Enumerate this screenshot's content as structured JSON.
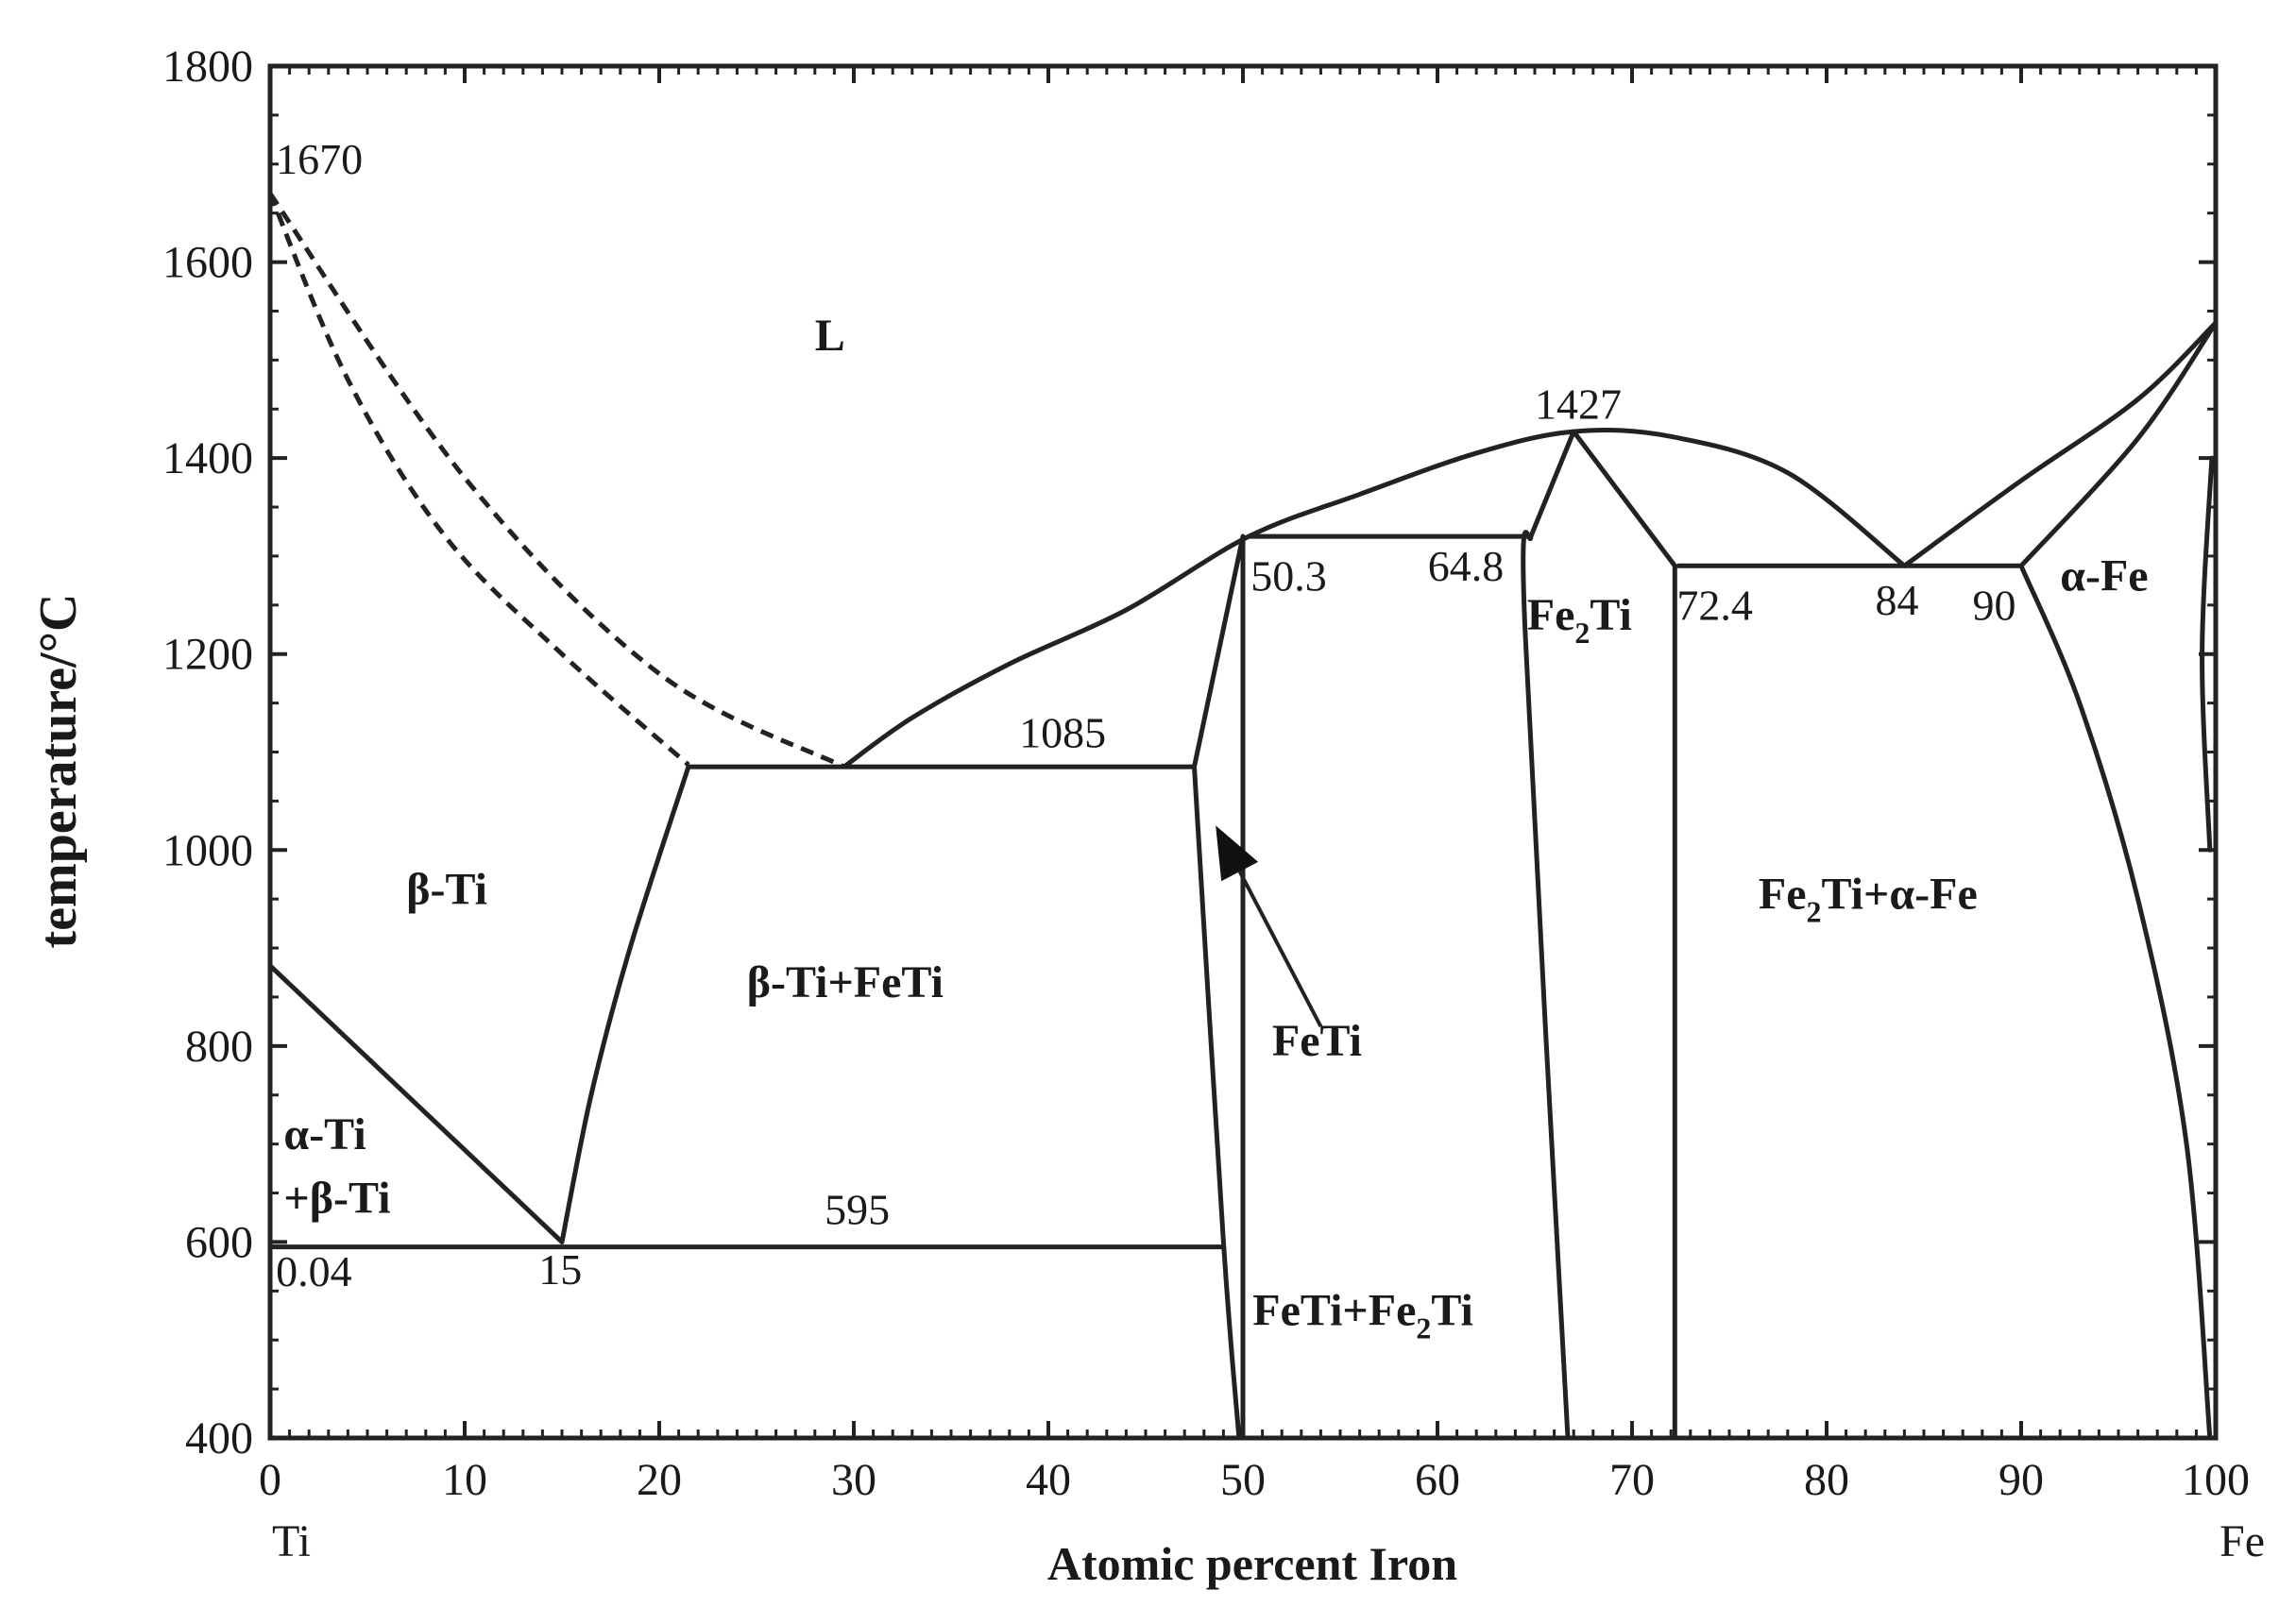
{
  "chart_data": {
    "type": "phase-diagram",
    "xlabel": "Atomic percent Iron",
    "ylabel": "temperature/°C",
    "xlim": [
      0,
      100
    ],
    "ylim": [
      400,
      1800
    ],
    "x_ticks": [
      0,
      10,
      20,
      30,
      40,
      50,
      60,
      70,
      80,
      90,
      100
    ],
    "y_ticks": [
      400,
      600,
      800,
      1000,
      1200,
      1400,
      1600,
      1800
    ],
    "x_end_labels": {
      "left": "Ti",
      "right": "Fe"
    },
    "minor_x_step": 1,
    "minor_y_step": 50,
    "boundaries": [
      {
        "style": "dashed",
        "points": [
          [
            0,
            1670
          ],
          [
            10,
            1380
          ],
          [
            20,
            1180
          ],
          [
            29.5,
            1085
          ]
        ]
      },
      {
        "style": "dashed",
        "points": [
          [
            0,
            1670
          ],
          [
            4,
            1480
          ],
          [
            9,
            1320
          ],
          [
            15,
            1200
          ],
          [
            21.5,
            1087
          ]
        ]
      },
      {
        "style": "solid",
        "points": [
          [
            29.5,
            1085
          ],
          [
            33,
            1135
          ],
          [
            38,
            1190
          ],
          [
            44,
            1245
          ],
          [
            50.3,
            1320
          ],
          [
            56,
            1363
          ],
          [
            62,
            1405
          ],
          [
            67,
            1427
          ],
          [
            72,
            1422
          ],
          [
            78,
            1385
          ],
          [
            84,
            1290
          ]
        ]
      },
      {
        "style": "solid",
        "points": [
          [
            84,
            1290
          ],
          [
            90,
            1377
          ],
          [
            96,
            1460
          ],
          [
            100,
            1538
          ]
        ]
      },
      {
        "style": "solid",
        "points": [
          [
            90,
            1290
          ],
          [
            96,
            1420
          ],
          [
            100,
            1538
          ]
        ]
      },
      {
        "style": "solid",
        "points": [
          [
            21.5,
            1085
          ],
          [
            47.5,
            1085
          ]
        ]
      },
      {
        "style": "solid",
        "points": [
          [
            21.5,
            1085
          ],
          [
            18.5,
            900
          ],
          [
            16.5,
            750
          ],
          [
            15,
            600
          ]
        ]
      },
      {
        "style": "solid",
        "points": [
          [
            0,
            882
          ],
          [
            15,
            600
          ]
        ]
      },
      {
        "style": "solid",
        "points": [
          [
            0,
            595
          ],
          [
            49,
            595
          ]
        ]
      },
      {
        "style": "solid",
        "points": [
          [
            47.5,
            1085
          ],
          [
            50,
            1320
          ]
        ]
      },
      {
        "style": "solid",
        "points": [
          [
            47.5,
            1085
          ],
          [
            49,
            600
          ],
          [
            49.8,
            400
          ]
        ]
      },
      {
        "style": "solid",
        "points": [
          [
            50,
            1320
          ],
          [
            50,
            400
          ]
        ]
      },
      {
        "style": "solid",
        "points": [
          [
            50.3,
            1320
          ],
          [
            64.8,
            1320
          ]
        ]
      },
      {
        "style": "solid",
        "points": [
          [
            64.8,
            1320
          ],
          [
            67,
            1427
          ]
        ]
      },
      {
        "style": "solid",
        "points": [
          [
            64.8,
            1320
          ],
          [
            64.5,
            1225
          ],
          [
            66.7,
            400
          ]
        ]
      },
      {
        "style": "solid",
        "points": [
          [
            67,
            1427
          ],
          [
            72.2,
            1290
          ]
        ]
      },
      {
        "style": "solid",
        "points": [
          [
            72.2,
            1290
          ],
          [
            72.2,
            400
          ]
        ]
      },
      {
        "style": "solid",
        "points": [
          [
            72.4,
            1290
          ],
          [
            90,
            1290
          ]
        ]
      },
      {
        "style": "solid",
        "points": [
          [
            90,
            1290
          ],
          [
            93,
            1150
          ],
          [
            96,
            950
          ],
          [
            98.5,
            700
          ],
          [
            99.7,
            400
          ]
        ]
      },
      {
        "style": "solid",
        "points": [
          [
            99.7,
            1000
          ],
          [
            99.3,
            1200
          ],
          [
            99.8,
            1400
          ]
        ]
      }
    ],
    "arrow": {
      "from": [
        54,
        820
      ],
      "to": [
        48.6,
        1025
      ],
      "label": "FeTi"
    },
    "point_labels": [
      {
        "text": "1670",
        "x": 0.3,
        "y": 1690
      },
      {
        "text": "1427",
        "x": 65,
        "y": 1440
      },
      {
        "text": "1085",
        "x": 38.5,
        "y": 1105
      },
      {
        "text": "50.3",
        "x": 50.4,
        "y": 1265
      },
      {
        "text": "64.8",
        "x": 59.5,
        "y": 1275
      },
      {
        "text": "72.4",
        "x": 72.3,
        "y": 1235
      },
      {
        "text": "84",
        "x": 82.5,
        "y": 1240
      },
      {
        "text": "90",
        "x": 87.5,
        "y": 1235
      },
      {
        "text": "595",
        "x": 28.5,
        "y": 618
      },
      {
        "text": "0.04",
        "x": 0.3,
        "y": 555
      },
      {
        "text": "15",
        "x": 13.8,
        "y": 557
      }
    ],
    "region_labels": [
      {
        "text": "L",
        "x": 28,
        "y": 1510
      },
      {
        "text": "β-Ti",
        "x": 7,
        "y": 945
      },
      {
        "text": "β-Ti+FeTi",
        "x": 24.5,
        "y": 850
      },
      {
        "text": "α-Ti",
        "x": 0.7,
        "y": 695
      },
      {
        "text": "+β-Ti",
        "x": 0.7,
        "y": 630
      },
      {
        "text": "FeTi",
        "x": 51.5,
        "y": 790
      },
      {
        "text": "FeTi+Fe",
        "sub": "2",
        "tail": "Ti",
        "x": 50.5,
        "y": 515
      },
      {
        "text": "Fe",
        "sub": "2",
        "tail": "Ti",
        "x": 64.6,
        "y": 1225
      },
      {
        "text": "Fe",
        "sub": "2",
        "tail": "Ti+α-Fe",
        "x": 76.5,
        "y": 940
      },
      {
        "text": "α-Fe",
        "x": 92,
        "y": 1265
      }
    ]
  }
}
